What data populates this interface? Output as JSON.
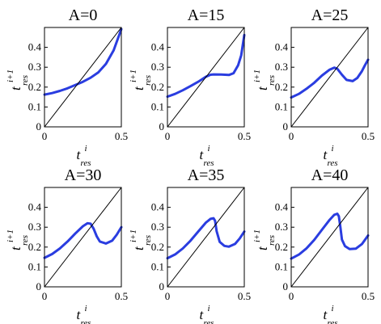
{
  "chart_data": [
    {
      "type": "line",
      "title": "A=0",
      "xlabel": {
        "base": "t",
        "sub": "res",
        "sup": "i"
      },
      "ylabel": {
        "base": "t",
        "sub": "res",
        "sup": "i+1"
      },
      "xlim": [
        0,
        0.5
      ],
      "ylim": [
        0,
        0.5
      ],
      "xticks": [
        "0",
        "0.5"
      ],
      "yticks": [
        "0",
        "0.1",
        "0.2",
        "0.3",
        "0.4"
      ],
      "grid": false,
      "series": [
        {
          "values": [
            [
              0,
              0.162
            ],
            [
              0.05,
              0.17
            ],
            [
              0.1,
              0.181
            ],
            [
              0.15,
              0.194
            ],
            [
              0.2,
              0.21
            ],
            [
              0.25,
              0.227
            ],
            [
              0.3,
              0.247
            ],
            [
              0.35,
              0.274
            ],
            [
              0.4,
              0.317
            ],
            [
              0.45,
              0.385
            ],
            [
              0.5,
              0.492
            ]
          ]
        },
        {
          "values": [
            [
              0,
              0
            ],
            [
              0.5,
              0.5
            ]
          ]
        }
      ]
    },
    {
      "type": "line",
      "title": "A=15",
      "xlabel": {
        "base": "t",
        "sub": "res",
        "sup": "i"
      },
      "ylabel": {
        "base": "t",
        "sub": "res",
        "sup": "i+1"
      },
      "xlim": [
        0,
        0.5
      ],
      "ylim": [
        0,
        0.5
      ],
      "xticks": [
        "0",
        "0.5"
      ],
      "yticks": [
        "0",
        "0.1",
        "0.2",
        "0.3",
        "0.4"
      ],
      "grid": false,
      "series": [
        {
          "values": [
            [
              0,
              0.152
            ],
            [
              0.05,
              0.166
            ],
            [
              0.1,
              0.184
            ],
            [
              0.15,
              0.205
            ],
            [
              0.2,
              0.227
            ],
            [
              0.25,
              0.252
            ],
            [
              0.28,
              0.262
            ],
            [
              0.3,
              0.264
            ],
            [
              0.35,
              0.263
            ],
            [
              0.4,
              0.261
            ],
            [
              0.43,
              0.27
            ],
            [
              0.46,
              0.31
            ],
            [
              0.48,
              0.36
            ],
            [
              0.5,
              0.462
            ]
          ]
        },
        {
          "values": [
            [
              0,
              0
            ],
            [
              0.5,
              0.5
            ]
          ]
        }
      ]
    },
    {
      "type": "line",
      "title": "A=25",
      "xlabel": {
        "base": "t",
        "sub": "res",
        "sup": "i"
      },
      "ylabel": {
        "base": "t",
        "sub": "res",
        "sup": "i+1"
      },
      "xlim": [
        0,
        0.5
      ],
      "ylim": [
        0,
        0.5
      ],
      "xticks": [
        "0",
        "0.5"
      ],
      "yticks": [
        "0",
        "0.1",
        "0.2",
        "0.3",
        "0.4"
      ],
      "grid": false,
      "series": [
        {
          "values": [
            [
              0,
              0.148
            ],
            [
              0.05,
              0.166
            ],
            [
              0.1,
              0.192
            ],
            [
              0.15,
              0.222
            ],
            [
              0.2,
              0.258
            ],
            [
              0.25,
              0.288
            ],
            [
              0.28,
              0.298
            ],
            [
              0.3,
              0.292
            ],
            [
              0.33,
              0.262
            ],
            [
              0.36,
              0.236
            ],
            [
              0.4,
              0.23
            ],
            [
              0.43,
              0.246
            ],
            [
              0.46,
              0.28
            ],
            [
              0.48,
              0.31
            ],
            [
              0.5,
              0.338
            ]
          ]
        },
        {
          "values": [
            [
              0,
              0
            ],
            [
              0.5,
              0.5
            ]
          ]
        }
      ]
    },
    {
      "type": "line",
      "title": "A=30",
      "xlabel": {
        "base": "t",
        "sub": "res",
        "sup": "i"
      },
      "ylabel": {
        "base": "t",
        "sub": "res",
        "sup": "i+1"
      },
      "xlim": [
        0,
        0.5
      ],
      "ylim": [
        0,
        0.5
      ],
      "xticks": [
        "0",
        "0.5"
      ],
      "yticks": [
        "0",
        "0.1",
        "0.2",
        "0.3",
        "0.4"
      ],
      "grid": false,
      "series": [
        {
          "values": [
            [
              0,
              0.146
            ],
            [
              0.05,
              0.165
            ],
            [
              0.1,
              0.193
            ],
            [
              0.15,
              0.228
            ],
            [
              0.2,
              0.268
            ],
            [
              0.25,
              0.305
            ],
            [
              0.28,
              0.32
            ],
            [
              0.3,
              0.318
            ],
            [
              0.32,
              0.292
            ],
            [
              0.34,
              0.254
            ],
            [
              0.36,
              0.228
            ],
            [
              0.4,
              0.218
            ],
            [
              0.44,
              0.232
            ],
            [
              0.47,
              0.262
            ],
            [
              0.5,
              0.3
            ]
          ]
        },
        {
          "values": [
            [
              0,
              0
            ],
            [
              0.5,
              0.5
            ]
          ]
        }
      ]
    },
    {
      "type": "line",
      "title": "A=35",
      "xlabel": {
        "base": "t",
        "sub": "res",
        "sup": "i"
      },
      "ylabel": {
        "base": "t",
        "sub": "res",
        "sup": "i+1"
      },
      "xlim": [
        0,
        0.5
      ],
      "ylim": [
        0,
        0.5
      ],
      "xticks": [
        "0",
        "0.5"
      ],
      "yticks": [
        "0",
        "0.1",
        "0.2",
        "0.3",
        "0.4"
      ],
      "grid": false,
      "series": [
        {
          "values": [
            [
              0,
              0.144
            ],
            [
              0.05,
              0.163
            ],
            [
              0.1,
              0.193
            ],
            [
              0.15,
              0.232
            ],
            [
              0.2,
              0.278
            ],
            [
              0.25,
              0.323
            ],
            [
              0.28,
              0.342
            ],
            [
              0.3,
              0.345
            ],
            [
              0.31,
              0.332
            ],
            [
              0.32,
              0.28
            ],
            [
              0.34,
              0.226
            ],
            [
              0.37,
              0.206
            ],
            [
              0.4,
              0.202
            ],
            [
              0.44,
              0.216
            ],
            [
              0.47,
              0.243
            ],
            [
              0.5,
              0.278
            ]
          ]
        },
        {
          "values": [
            [
              0,
              0
            ],
            [
              0.5,
              0.5
            ]
          ]
        }
      ]
    },
    {
      "type": "line",
      "title": "A=40",
      "xlabel": {
        "base": "t",
        "sub": "res",
        "sup": "i"
      },
      "ylabel": {
        "base": "t",
        "sub": "res",
        "sup": "i+1"
      },
      "xlim": [
        0,
        0.5
      ],
      "ylim": [
        0,
        0.5
      ],
      "xticks": [
        "0",
        "0.5"
      ],
      "yticks": [
        "0",
        "0.1",
        "0.2",
        "0.3",
        "0.4"
      ],
      "grid": false,
      "series": [
        {
          "values": [
            [
              0,
              0.142
            ],
            [
              0.05,
              0.162
            ],
            [
              0.1,
              0.194
            ],
            [
              0.15,
              0.236
            ],
            [
              0.2,
              0.287
            ],
            [
              0.25,
              0.337
            ],
            [
              0.28,
              0.362
            ],
            [
              0.3,
              0.368
            ],
            [
              0.31,
              0.355
            ],
            [
              0.32,
              0.3
            ],
            [
              0.33,
              0.238
            ],
            [
              0.35,
              0.205
            ],
            [
              0.38,
              0.19
            ],
            [
              0.42,
              0.192
            ],
            [
              0.46,
              0.215
            ],
            [
              0.5,
              0.258
            ]
          ]
        },
        {
          "values": [
            [
              0,
              0
            ],
            [
              0.5,
              0.5
            ]
          ]
        }
      ]
    }
  ]
}
